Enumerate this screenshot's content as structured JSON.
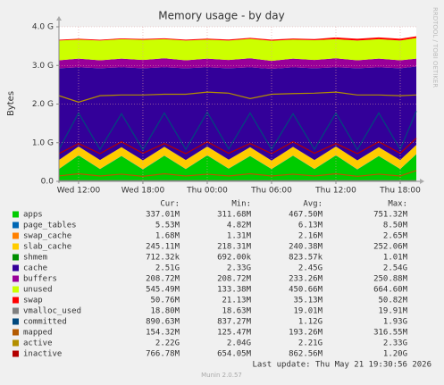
{
  "chart_data": {
    "type": "stacked-area",
    "title": "Memory usage - by day",
    "ylabel": "Bytes",
    "side_text": "RRDTOOL / TOBI OETIKER",
    "legend_columns": [
      "Cur:",
      "Min:",
      "Avg:",
      "Max:"
    ],
    "last_update": "Last update: Thu May 21 19:30:56 2026",
    "footer": "Munin 2.0.57",
    "grid": true,
    "xlim": [
      10.17,
      43.5
    ],
    "xticks": [
      {
        "value": 12,
        "label": "Wed 12:00"
      },
      {
        "value": 18,
        "label": "Wed 18:00"
      },
      {
        "value": 24,
        "label": "Thu 00:00"
      },
      {
        "value": 30,
        "label": "Thu 06:00"
      },
      {
        "value": 36,
        "label": "Thu 12:00"
      },
      {
        "value": 42,
        "label": "Thu 18:00"
      }
    ],
    "ylim": [
      0,
      4294967296
    ],
    "yticks": [
      {
        "value": 0,
        "label": "0.0"
      },
      {
        "value": 1073741824,
        "label": "1.0 G"
      },
      {
        "value": 2147483648,
        "label": "2.0 G"
      },
      {
        "value": 3221225472,
        "label": "3.0 G"
      },
      {
        "value": 4294967296,
        "label": "4.0 G"
      }
    ],
    "x": [
      10.17,
      12,
      14,
      16,
      18,
      20,
      22,
      24,
      26,
      28,
      30,
      32,
      34,
      36,
      38,
      40,
      42,
      43.5
    ],
    "series": [
      {
        "name": "apps",
        "color": "#00cc00",
        "stack": true,
        "stats": [
          "337.01M",
          "311.68M",
          "467.50M",
          "751.32M"
        ],
        "values": [
          340000000.0,
          720000000.0,
          340000000.0,
          700000000.0,
          330000000.0,
          710000000.0,
          340000000.0,
          720000000.0,
          350000000.0,
          700000000.0,
          340000000.0,
          710000000.0,
          340000000.0,
          720000000.0,
          330000000.0,
          700000000.0,
          340000000.0,
          750000000.0
        ]
      },
      {
        "name": "page_tables",
        "color": "#0066b3",
        "stack": true,
        "stats": [
          "5.53M",
          "4.82M",
          "6.13M",
          "8.50M"
        ],
        "values": [
          5500000.0,
          6500000.0,
          5500000.0,
          6500000.0,
          5500000.0,
          6500000.0,
          5500000.0,
          6500000.0,
          5500000.0,
          6500000.0,
          5500000.0,
          6500000.0,
          5500000.0,
          6500000.0,
          5500000.0,
          6500000.0,
          5500000.0,
          8000000.0
        ]
      },
      {
        "name": "swap_cache",
        "color": "#ff8000",
        "stack": true,
        "stats": [
          "1.68M",
          "1.31M",
          "2.16M",
          "2.65M"
        ],
        "values": [
          1700000.0,
          2200000.0,
          1700000.0,
          2200000.0,
          1700000.0,
          2200000.0,
          1700000.0,
          2200000.0,
          1700000.0,
          2200000.0,
          1700000.0,
          2200000.0,
          1700000.0,
          2200000.0,
          1700000.0,
          2200000.0,
          1700000.0,
          2500000.0
        ]
      },
      {
        "name": "slab_cache",
        "color": "#ffcc00",
        "stack": true,
        "stats": [
          "245.11M",
          "218.31M",
          "240.38M",
          "252.06M"
        ],
        "values": [
          245000000.0,
          240000000.0,
          245000000.0,
          240000000.0,
          245000000.0,
          240000000.0,
          245000000.0,
          240000000.0,
          245000000.0,
          240000000.0,
          230000000.0,
          240000000.0,
          245000000.0,
          240000000.0,
          245000000.0,
          240000000.0,
          245000000.0,
          250000000.0
        ]
      },
      {
        "name": "shmem",
        "color": "#008f00",
        "stack": true,
        "stats": [
          "712.32k",
          "692.00k",
          "823.57k",
          "1.01M"
        ],
        "values": [
          710000.0,
          850000.0,
          710000.0,
          850000.0,
          710000.0,
          850000.0,
          710000.0,
          850000.0,
          710000.0,
          850000.0,
          710000.0,
          850000.0,
          710000.0,
          850000.0,
          710000.0,
          850000.0,
          710000.0,
          1000000.0
        ]
      },
      {
        "name": "cache",
        "color": "#330099",
        "stack": true,
        "stats": [
          "2.51G",
          "2.33G",
          "2.45G",
          "2.54G"
        ],
        "values": [
          2550000000.0,
          2200000000.0,
          2550000000.0,
          2220000000.0,
          2560000000.0,
          2210000000.0,
          2550000000.0,
          2200000000.0,
          2540000000.0,
          2220000000.0,
          2550000000.0,
          2210000000.0,
          2550000000.0,
          2200000000.0,
          2560000000.0,
          2220000000.0,
          2550000000.0,
          2180000000.0
        ]
      },
      {
        "name": "buffers",
        "color": "#990099",
        "stack": true,
        "stats": [
          "208.72M",
          "208.72M",
          "233.26M",
          "250.88M"
        ],
        "values": [
          220000000.0,
          240000000.0,
          220000000.0,
          240000000.0,
          230000000.0,
          250000000.0,
          220000000.0,
          240000000.0,
          230000000.0,
          250000000.0,
          220000000.0,
          240000000.0,
          230000000.0,
          250000000.0,
          220000000.0,
          240000000.0,
          220000000.0,
          220000000.0
        ]
      },
      {
        "name": "unused",
        "color": "#ccff00",
        "stack": true,
        "stats": [
          "545.49M",
          "133.38M",
          "450.66M",
          "664.60M"
        ],
        "values": [
          550000000.0,
          530000000.0,
          550000000.0,
          540000000.0,
          560000000.0,
          530000000.0,
          550000000.0,
          530000000.0,
          540000000.0,
          540000000.0,
          560000000.0,
          530000000.0,
          550000000.0,
          530000000.0,
          550000000.0,
          540000000.0,
          550000000.0,
          570000000.0
        ]
      },
      {
        "name": "swap",
        "color": "#ff0000",
        "stack": true,
        "stats": [
          "50.76M",
          "21.13M",
          "35.13M",
          "50.82M"
        ],
        "values": [
          22000000.0,
          22000000.0,
          23000000.0,
          23000000.0,
          25000000.0,
          25000000.0,
          26000000.0,
          26000000.0,
          28000000.0,
          28000000.0,
          30000000.0,
          30000000.0,
          32000000.0,
          50000000.0,
          50000000.0,
          51000000.0,
          51000000.0,
          51000000.0
        ]
      },
      {
        "name": "vmalloc_used",
        "color": "#808080",
        "stack": false,
        "stats": [
          "18.80M",
          "18.63M",
          "19.01M",
          "19.91M"
        ],
        "values": [
          19000000.0,
          19000000.0,
          19000000.0,
          19000000.0,
          19000000.0,
          19000000.0,
          19000000.0,
          19000000.0,
          19000000.0,
          19000000.0,
          19000000.0,
          19000000.0,
          19000000.0,
          19000000.0,
          19000000.0,
          19000000.0,
          19000000.0,
          19000000.0
        ]
      },
      {
        "name": "committed",
        "color": "#00487d",
        "stack": false,
        "stats": [
          "890.63M",
          "837.27M",
          "1.12G",
          "1.93G"
        ],
        "values": [
          890000000.0,
          1900000000.0,
          890000000.0,
          1880000000.0,
          880000000.0,
          1900000000.0,
          890000000.0,
          1920000000.0,
          900000000.0,
          1900000000.0,
          890000000.0,
          1880000000.0,
          890000000.0,
          1900000000.0,
          880000000.0,
          1900000000.0,
          890000000.0,
          1950000000.0
        ]
      },
      {
        "name": "mapped",
        "color": "#b35a00",
        "stack": false,
        "stats": [
          "154.32M",
          "125.47M",
          "193.26M",
          "316.55M"
        ],
        "values": [
          150000000.0,
          210000000.0,
          150000000.0,
          200000000.0,
          140000000.0,
          210000000.0,
          150000000.0,
          200000000.0,
          150000000.0,
          210000000.0,
          150000000.0,
          200000000.0,
          150000000.0,
          210000000.0,
          140000000.0,
          200000000.0,
          150000000.0,
          300000000.0
        ]
      },
      {
        "name": "active",
        "color": "#b38f00",
        "stack": false,
        "stats": [
          "2.22G",
          "2.04G",
          "2.21G",
          "2.33G"
        ],
        "values": [
          2380000000.0,
          2200000000.0,
          2380000000.0,
          2400000000.0,
          2400000000.0,
          2420000000.0,
          2420000000.0,
          2480000000.0,
          2450000000.0,
          2300000000.0,
          2420000000.0,
          2440000000.0,
          2450000000.0,
          2480000000.0,
          2400000000.0,
          2400000000.0,
          2380000000.0,
          2400000000.0
        ]
      },
      {
        "name": "inactive",
        "color": "#b30000",
        "stack": false,
        "stats": [
          "766.78M",
          "654.05M",
          "862.56M",
          "1.20G"
        ],
        "values": [
          770000000.0,
          1050000000.0,
          770000000.0,
          1100000000.0,
          780000000.0,
          1050000000.0,
          770000000.0,
          1100000000.0,
          780000000.0,
          1050000000.0,
          770000000.0,
          1100000000.0,
          780000000.0,
          1050000000.0,
          770000000.0,
          1100000000.0,
          780000000.0,
          1200000000.0
        ]
      }
    ]
  }
}
